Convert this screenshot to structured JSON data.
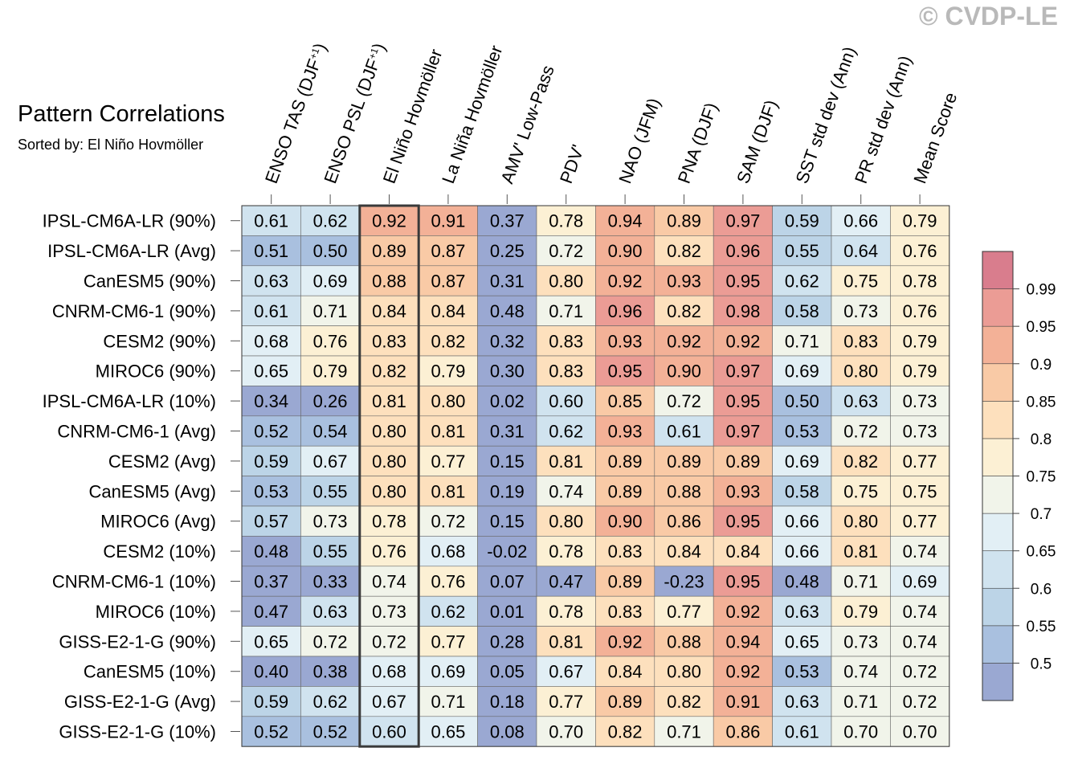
{
  "watermark": "© CVDP-LE",
  "chart_data": {
    "type": "heatmap",
    "title": "Pattern Correlations",
    "subtitle": "Sorted by: El Niño Hovmöller",
    "highlighted_column": "El Niño Hovmöller",
    "columns": [
      "ENSO TAS (DJF+1)",
      "ENSO PSL (DJF+1)",
      "El Niño Hovmöller",
      "La Niña Hovmöller",
      "AMV' Low-Pass",
      "PDV'",
      "NAO (JFM)",
      "PNA (DJF)",
      "SAM (DJF)",
      "SST std dev (Ann)",
      "PR std dev (Ann)",
      "Mean Score"
    ],
    "rows": [
      "IPSL-CM6A-LR (90%)",
      "IPSL-CM6A-LR (Avg)",
      "CanESM5 (90%)",
      "CNRM-CM6-1 (90%)",
      "CESM2 (90%)",
      "MIROC6 (90%)",
      "IPSL-CM6A-LR (10%)",
      "CNRM-CM6-1 (Avg)",
      "CESM2 (Avg)",
      "CanESM5 (Avg)",
      "MIROC6 (Avg)",
      "CESM2 (10%)",
      "CNRM-CM6-1 (10%)",
      "MIROC6 (10%)",
      "GISS-E2-1-G (90%)",
      "CanESM5 (10%)",
      "GISS-E2-1-G (Avg)",
      "GISS-E2-1-G (10%)"
    ],
    "values": [
      [
        "0.61",
        "0.62",
        "0.92",
        "0.91",
        "0.37",
        "0.78",
        "0.94",
        "0.89",
        "0.97",
        "0.59",
        "0.66",
        "0.79"
      ],
      [
        "0.51",
        "0.50",
        "0.89",
        "0.87",
        "0.25",
        "0.72",
        "0.90",
        "0.82",
        "0.96",
        "0.55",
        "0.64",
        "0.76"
      ],
      [
        "0.63",
        "0.69",
        "0.88",
        "0.87",
        "0.31",
        "0.80",
        "0.92",
        "0.93",
        "0.95",
        "0.62",
        "0.75",
        "0.78"
      ],
      [
        "0.61",
        "0.71",
        "0.84",
        "0.84",
        "0.48",
        "0.71",
        "0.96",
        "0.82",
        "0.98",
        "0.58",
        "0.73",
        "0.76"
      ],
      [
        "0.68",
        "0.76",
        "0.83",
        "0.82",
        "0.32",
        "0.83",
        "0.93",
        "0.92",
        "0.92",
        "0.71",
        "0.83",
        "0.79"
      ],
      [
        "0.65",
        "0.79",
        "0.82",
        "0.79",
        "0.30",
        "0.83",
        "0.95",
        "0.90",
        "0.97",
        "0.69",
        "0.80",
        "0.79"
      ],
      [
        "0.34",
        "0.26",
        "0.81",
        "0.80",
        "0.02",
        "0.60",
        "0.85",
        "0.72",
        "0.95",
        "0.50",
        "0.63",
        "0.73"
      ],
      [
        "0.52",
        "0.54",
        "0.80",
        "0.81",
        "0.31",
        "0.62",
        "0.93",
        "0.61",
        "0.97",
        "0.53",
        "0.72",
        "0.73"
      ],
      [
        "0.59",
        "0.67",
        "0.80",
        "0.77",
        "0.15",
        "0.81",
        "0.89",
        "0.89",
        "0.89",
        "0.69",
        "0.82",
        "0.77"
      ],
      [
        "0.53",
        "0.55",
        "0.80",
        "0.81",
        "0.19",
        "0.74",
        "0.89",
        "0.88",
        "0.93",
        "0.58",
        "0.75",
        "0.75"
      ],
      [
        "0.57",
        "0.73",
        "0.78",
        "0.72",
        "0.15",
        "0.80",
        "0.90",
        "0.86",
        "0.95",
        "0.66",
        "0.80",
        "0.77"
      ],
      [
        "0.48",
        "0.55",
        "0.76",
        "0.68",
        "-0.02",
        "0.78",
        "0.83",
        "0.84",
        "0.84",
        "0.66",
        "0.81",
        "0.74"
      ],
      [
        "0.37",
        "0.33",
        "0.74",
        "0.76",
        "0.07",
        "0.47",
        "0.89",
        "-0.23",
        "0.95",
        "0.48",
        "0.71",
        "0.69"
      ],
      [
        "0.47",
        "0.63",
        "0.73",
        "0.62",
        "0.01",
        "0.78",
        "0.83",
        "0.77",
        "0.92",
        "0.63",
        "0.79",
        "0.74"
      ],
      [
        "0.65",
        "0.72",
        "0.72",
        "0.77",
        "0.28",
        "0.81",
        "0.92",
        "0.88",
        "0.94",
        "0.65",
        "0.73",
        "0.74"
      ],
      [
        "0.40",
        "0.38",
        "0.68",
        "0.69",
        "0.05",
        "0.67",
        "0.84",
        "0.80",
        "0.92",
        "0.53",
        "0.74",
        "0.72"
      ],
      [
        "0.59",
        "0.62",
        "0.67",
        "0.71",
        "0.18",
        "0.77",
        "0.89",
        "0.82",
        "0.91",
        "0.63",
        "0.71",
        "0.72"
      ],
      [
        "0.52",
        "0.52",
        "0.60",
        "0.65",
        "0.08",
        "0.70",
        "0.82",
        "0.71",
        "0.86",
        "0.61",
        "0.70",
        "0.70"
      ]
    ],
    "colorbar": {
      "labels": [
        "0.5",
        "0.55",
        "0.6",
        "0.65",
        "0.7",
        "0.75",
        "0.8",
        "0.85",
        "0.9",
        "0.95",
        "0.99"
      ],
      "bin_thresholds": [
        0.5,
        0.55,
        0.6,
        0.65,
        0.7,
        0.75,
        0.8,
        0.85,
        0.9,
        0.95,
        0.99
      ],
      "colors": [
        "#9aa8d2",
        "#a9c0df",
        "#bcd4e7",
        "#d0e3ef",
        "#e2eff5",
        "#f1f4ea",
        "#fcf0d4",
        "#fde0bd",
        "#f9caa6",
        "#f3b197",
        "#eb9c95",
        "#d97d8d"
      ]
    }
  }
}
